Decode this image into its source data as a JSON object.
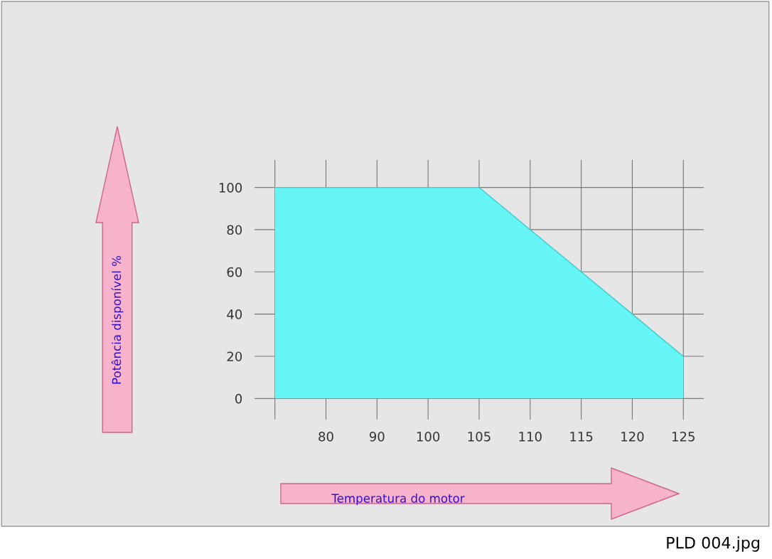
{
  "chart_data": {
    "type": "area",
    "xlabel": "Temperatura do motor",
    "categories": [
      null,
      "80",
      "90",
      "100",
      "105",
      "110",
      "115",
      "120",
      "125"
    ],
    "series": [
      {
        "color": "#66f5f5",
        "values": [
          100,
          100,
          100,
          100,
          100,
          80,
          60,
          40,
          20
        ]
      }
    ],
    "ylim": [
      -10,
      113
    ],
    "yticks": [
      0,
      20,
      40,
      60,
      80,
      100
    ],
    "grid": true,
    "annotations": [
      "Potência disponível %",
      "PLD 004.jpg"
    ]
  }
}
